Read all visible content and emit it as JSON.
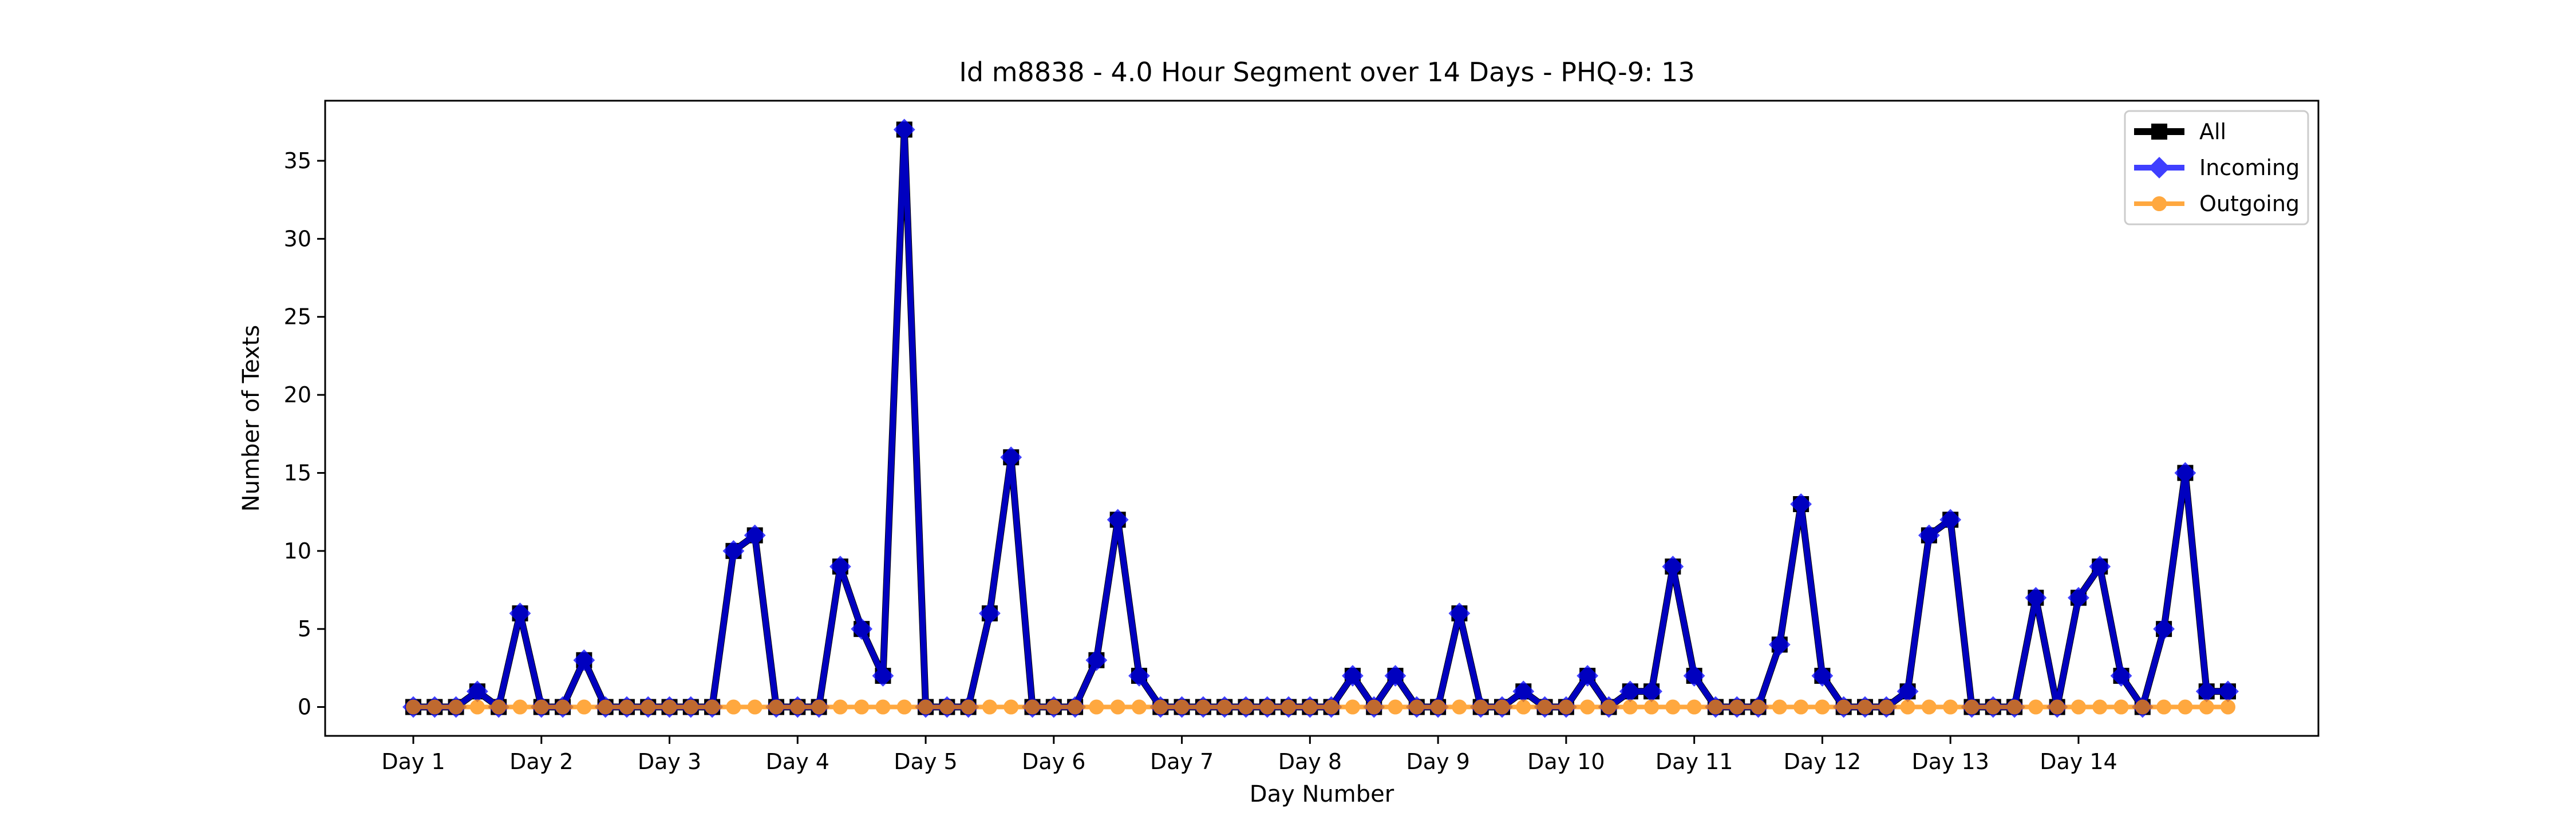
{
  "chart_data": {
    "type": "line",
    "title": "Id m8838 - 4.0 Hour Segment over 14 Days - PHQ-9: 13",
    "xlabel": "Day Number",
    "ylabel": "Number of Texts",
    "ylim": [
      -1.85,
      38.85
    ],
    "yticks": [
      0,
      5,
      10,
      15,
      20,
      25,
      30,
      35
    ],
    "xtick_labels": [
      "Day 1",
      "Day 2",
      "Day 3",
      "Day 4",
      "Day 5",
      "Day 6",
      "Day 7",
      "Day 8",
      "Day 9",
      "Day 10",
      "Day 11",
      "Day 12",
      "Day 13",
      "Day 14"
    ],
    "x_step_label": "4.0 Hour Segment",
    "legend_position": "top-right",
    "grid": false,
    "series": [
      {
        "name": "All",
        "color": "#000000",
        "marker": "square",
        "values": [
          0,
          0,
          0,
          1,
          0,
          6,
          0,
          0,
          3,
          0,
          0,
          0,
          0,
          0,
          0,
          10,
          11,
          0,
          0,
          0,
          9,
          5,
          2,
          37,
          0,
          0,
          0,
          6,
          16,
          0,
          0,
          0,
          3,
          12,
          2,
          0,
          0,
          0,
          0,
          0,
          0,
          0,
          0,
          0,
          2,
          0,
          2,
          0,
          0,
          6,
          0,
          0,
          1,
          0,
          0,
          2,
          0,
          1,
          1,
          9,
          2,
          0,
          0,
          0,
          4,
          13,
          2,
          0,
          0,
          0,
          1,
          11,
          12,
          0,
          0,
          0,
          7,
          0,
          7,
          9,
          2,
          0,
          5,
          15,
          1,
          1
        ]
      },
      {
        "name": "Incoming",
        "color": "#0000ff",
        "marker": "diamond",
        "values": [
          0,
          0,
          0,
          1,
          0,
          6,
          0,
          0,
          3,
          0,
          0,
          0,
          0,
          0,
          0,
          10,
          11,
          0,
          0,
          0,
          9,
          5,
          2,
          37,
          0,
          0,
          0,
          6,
          16,
          0,
          0,
          0,
          3,
          12,
          2,
          0,
          0,
          0,
          0,
          0,
          0,
          0,
          0,
          0,
          2,
          0,
          2,
          0,
          0,
          6,
          0,
          0,
          1,
          0,
          0,
          2,
          0,
          1,
          1,
          9,
          2,
          0,
          0,
          0,
          4,
          13,
          2,
          0,
          0,
          0,
          1,
          11,
          12,
          0,
          0,
          0,
          7,
          0,
          7,
          9,
          2,
          0,
          5,
          15,
          1,
          1
        ]
      },
      {
        "name": "Outgoing",
        "color": "#ff8c00",
        "marker": "circle",
        "values": [
          0,
          0,
          0,
          0,
          0,
          0,
          0,
          0,
          0,
          0,
          0,
          0,
          0,
          0,
          0,
          0,
          0,
          0,
          0,
          0,
          0,
          0,
          0,
          0,
          0,
          0,
          0,
          0,
          0,
          0,
          0,
          0,
          0,
          0,
          0,
          0,
          0,
          0,
          0,
          0,
          0,
          0,
          0,
          0,
          0,
          0,
          0,
          0,
          0,
          0,
          0,
          0,
          0,
          0,
          0,
          0,
          0,
          0,
          0,
          0,
          0,
          0,
          0,
          0,
          0,
          0,
          0,
          0,
          0,
          0,
          0,
          0,
          0,
          0,
          0,
          0,
          0,
          0,
          0,
          0,
          0,
          0,
          0,
          0,
          0,
          0
        ]
      }
    ]
  }
}
